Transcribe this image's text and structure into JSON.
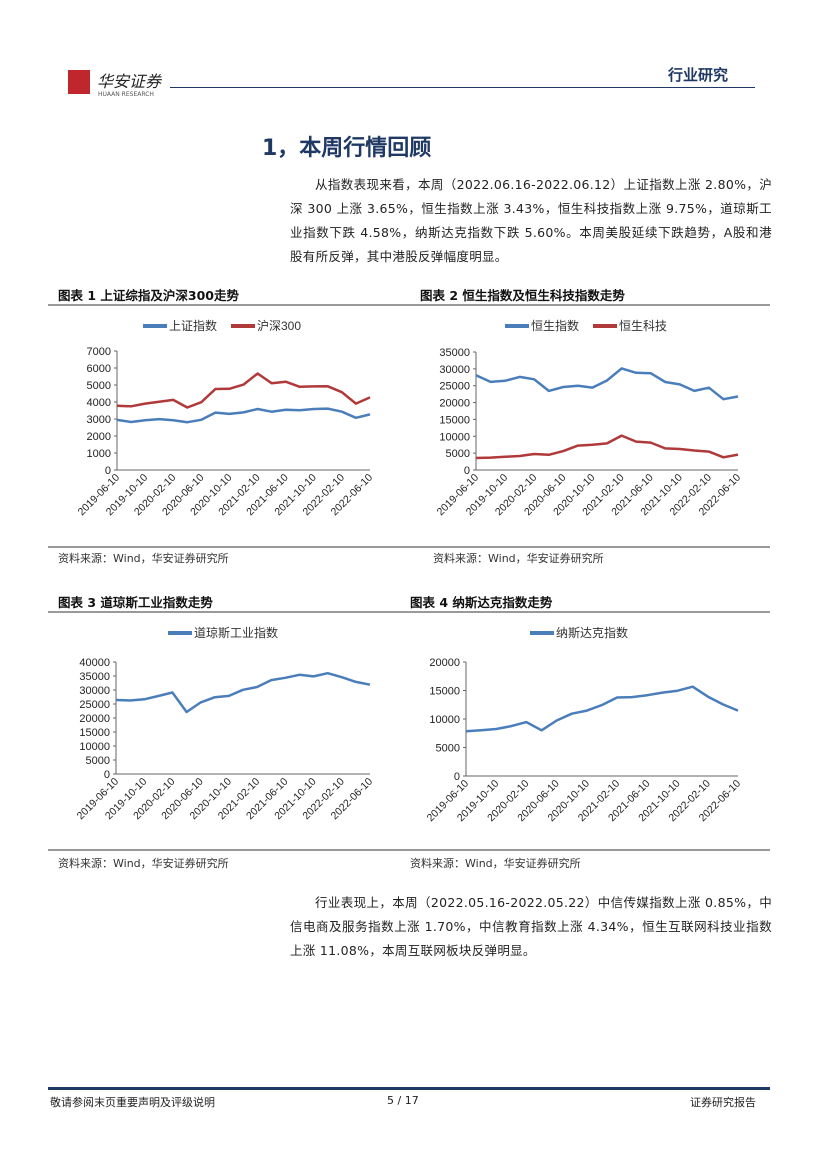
{
  "header": {
    "logo_text": "华安证券",
    "logo_sub": "HUAAN RESEARCH",
    "section": "行业研究",
    "logo_color": "#c0272d"
  },
  "title": "1，本周行情回顾",
  "para1": "从指数表现来看，本周（2022.06.16-2022.06.12）上证指数上涨 2.80%，沪深 300 上涨 3.65%，恒生指数上涨 3.43%，恒生科技指数上涨 9.75%，道琼斯工业指数下跌 4.58%，纳斯达克指数下跌 5.60%。本周美股延续下跌趋势，A股和港股有所反弹，其中港股反弹幅度明显。",
  "para2": "行业表现上，本周（2022.05.16-2022.05.22）中信传媒指数上涨 0.85%，中信电商及服务指数上涨 1.70%，中信教育指数上涨 4.34%，恒生互联网科技业指数上涨 11.08%，本周互联网板块反弹明显。",
  "source": "资料来源：Wind，华安证券研究所",
  "footer": {
    "left": "敬请参阅末页重要声明及评级说明",
    "page": "5 / 17",
    "right": "证券研究报告"
  },
  "chart_data": [
    {
      "type": "line",
      "title": "图表 1 上证综指及沪深300走势",
      "ylim": [
        0,
        7000
      ],
      "yticks": [
        0,
        1000,
        2000,
        3000,
        4000,
        5000,
        6000,
        7000
      ],
      "xticks": [
        "2019-06-10",
        "2019-10-10",
        "2020-02-10",
        "2020-06-10",
        "2020-10-10",
        "2021-02-10",
        "2021-06-10",
        "2021-10-10",
        "2022-02-10",
        "2022-06-10"
      ],
      "x": [
        "2019-06",
        "2019-08",
        "2019-10",
        "2019-12",
        "2020-02",
        "2020-04",
        "2020-06",
        "2020-08",
        "2020-10",
        "2020-12",
        "2021-02",
        "2021-04",
        "2021-06",
        "2021-08",
        "2021-10",
        "2021-12",
        "2022-02",
        "2022-04",
        "2022-06"
      ],
      "legend": "top",
      "series": [
        {
          "name": "上证指数",
          "color": "#4a7ebb",
          "values": [
            2950,
            2850,
            2950,
            3000,
            2900,
            2800,
            2950,
            3350,
            3300,
            3400,
            3600,
            3450,
            3550,
            3500,
            3580,
            3620,
            3450,
            3050,
            3280
          ]
        },
        {
          "name": "沪深300",
          "color": "#b0393a",
          "values": [
            3800,
            3750,
            3900,
            4000,
            4100,
            3700,
            4000,
            4750,
            4750,
            5000,
            5700,
            5100,
            5200,
            4900,
            4900,
            4900,
            4600,
            3900,
            4250
          ]
        }
      ]
    },
    {
      "type": "line",
      "title": "图表 2 恒生指数及恒生科技指数走势",
      "ylim": [
        0,
        35000
      ],
      "yticks": [
        0,
        5000,
        10000,
        15000,
        20000,
        25000,
        30000,
        35000
      ],
      "xticks": [
        "2019-06-10",
        "2019-10-10",
        "2020-02-10",
        "2020-06-10",
        "2020-10-10",
        "2021-02-10",
        "2021-06-10",
        "2021-10-10",
        "2022-02-10",
        "2022-06-10"
      ],
      "x": [
        "2019-06",
        "2019-08",
        "2019-10",
        "2019-12",
        "2020-02",
        "2020-04",
        "2020-06",
        "2020-08",
        "2020-10",
        "2020-12",
        "2021-02",
        "2021-04",
        "2021-06",
        "2021-08",
        "2021-10",
        "2021-12",
        "2022-02",
        "2022-04",
        "2022-06"
      ],
      "legend": "top",
      "series": [
        {
          "name": "恒生指数",
          "color": "#4a7ebb",
          "values": [
            28000,
            26000,
            26500,
            27500,
            27000,
            23500,
            24500,
            25000,
            24500,
            26500,
            30000,
            28800,
            28800,
            26000,
            25500,
            23500,
            24500,
            21000,
            21800
          ]
        },
        {
          "name": "恒生科技",
          "color": "#b0393a",
          "values": [
            3600,
            3600,
            3900,
            4200,
            4800,
            4500,
            5500,
            7200,
            7500,
            8000,
            10200,
            8500,
            8000,
            6500,
            6200,
            5800,
            5500,
            3800,
            4500
          ]
        }
      ]
    },
    {
      "type": "line",
      "title": "图表 3 道琼斯工业指数走势",
      "ylim": [
        0,
        40000
      ],
      "yticks": [
        0,
        5000,
        10000,
        15000,
        20000,
        25000,
        30000,
        35000,
        40000
      ],
      "xticks": [
        "2019-06-10",
        "2019-10-10",
        "2020-02-10",
        "2020-06-10",
        "2020-10-10",
        "2021-02-10",
        "2021-06-10",
        "2021-10-10",
        "2022-02-10",
        "2022-06-10"
      ],
      "x": [
        "2019-06",
        "2019-08",
        "2019-10",
        "2019-12",
        "2020-02",
        "2020-04",
        "2020-06",
        "2020-08",
        "2020-10",
        "2020-12",
        "2021-02",
        "2021-04",
        "2021-06",
        "2021-08",
        "2021-10",
        "2021-12",
        "2022-02",
        "2022-04",
        "2022-06"
      ],
      "legend": "top",
      "series": [
        {
          "name": "道琼斯工业指数",
          "color": "#4a7ebb",
          "values": [
            26500,
            26300,
            26800,
            28000,
            29000,
            22000,
            25500,
            27500,
            28000,
            30000,
            31000,
            33500,
            34500,
            35300,
            35000,
            36000,
            34500,
            33000,
            32000
          ]
        }
      ]
    },
    {
      "type": "line",
      "title": "图表 4 纳斯达克指数走势",
      "ylim": [
        0,
        20000
      ],
      "yticks": [
        0,
        5000,
        10000,
        15000,
        20000
      ],
      "xticks": [
        "2019-06-10",
        "2019-10-10",
        "2020-02-10",
        "2020-06-10",
        "2020-10-10",
        "2021-02-10",
        "2021-06-10",
        "2021-10-10",
        "2022-02-10",
        "2022-06-10"
      ],
      "x": [
        "2019-06",
        "2019-08",
        "2019-10",
        "2019-12",
        "2020-02",
        "2020-04",
        "2020-06",
        "2020-08",
        "2020-10",
        "2020-12",
        "2021-02",
        "2021-04",
        "2021-06",
        "2021-08",
        "2021-10",
        "2021-12",
        "2022-02",
        "2022-04",
        "2022-06"
      ],
      "legend": "top",
      "series": [
        {
          "name": "纳斯达克指数",
          "color": "#4a7ebb",
          "values": [
            7800,
            8000,
            8200,
            8700,
            9500,
            8000,
            9800,
            11000,
            11500,
            12500,
            13800,
            13800,
            14200,
            14700,
            15000,
            15600,
            14000,
            12500,
            11400
          ]
        }
      ]
    }
  ]
}
